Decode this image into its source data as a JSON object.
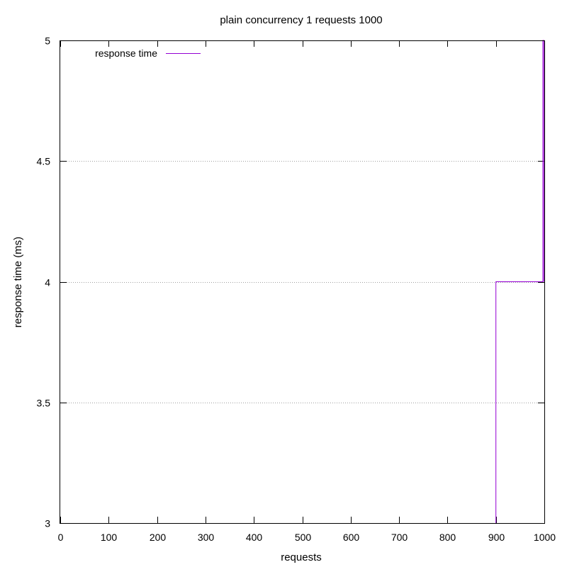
{
  "chart_data": {
    "type": "line",
    "title": "plain concurrency 1 requests 1000",
    "xlabel": "requests",
    "ylabel": "response time (ms)",
    "xlim": [
      0,
      1000
    ],
    "ylim": [
      3,
      5
    ],
    "xticks": [
      0,
      100,
      200,
      300,
      400,
      500,
      600,
      700,
      800,
      900,
      1000
    ],
    "yticks": [
      3,
      3.5,
      4,
      4.5,
      5
    ],
    "ytick_labels": [
      "3",
      "3.5",
      "4",
      "4.5",
      "5"
    ],
    "grid_y": true,
    "legend_position": "top-left",
    "series": [
      {
        "name": "response time",
        "color": "#9400d3",
        "step": true,
        "x": [
          900,
          900,
          997,
          997,
          999,
          999
        ],
        "y": [
          3,
          4,
          4,
          5,
          5,
          4
        ]
      }
    ]
  }
}
